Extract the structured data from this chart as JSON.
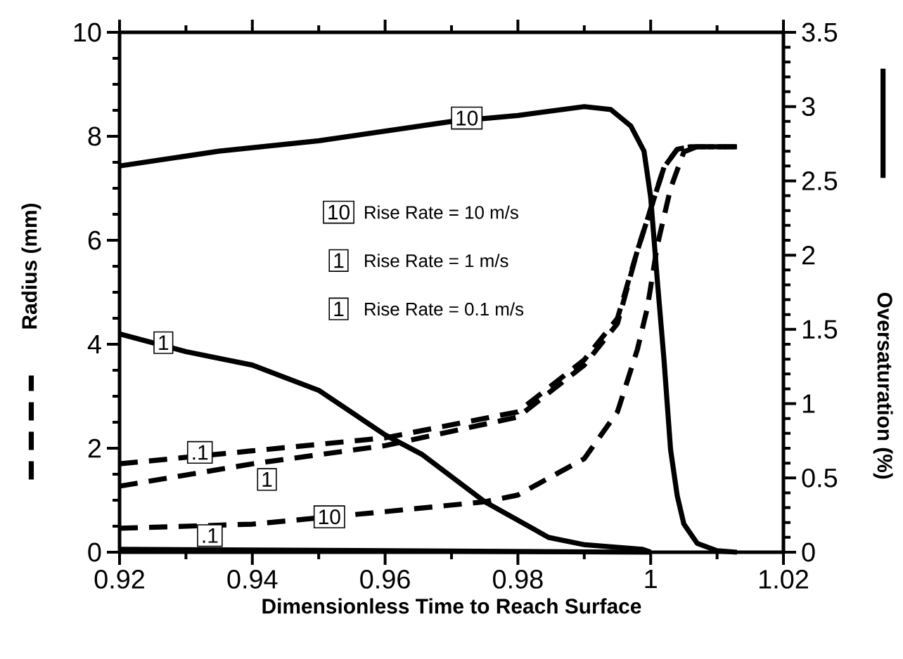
{
  "chart_data": {
    "type": "line",
    "xlabel": "Dimensionless Time to Reach Surface",
    "ylabel": "Radius (mm)",
    "y2label": "Oversaturation (%)",
    "xlim": [
      0.92,
      1.02
    ],
    "xticks": [
      0.92,
      0.94,
      0.96,
      0.98,
      1,
      1.02
    ],
    "ylim": [
      0,
      10
    ],
    "yticks": [
      0,
      2,
      4,
      6,
      8,
      10
    ],
    "y2lim": [
      0,
      3.5
    ],
    "y2ticks": [
      0,
      0.5,
      1,
      1.5,
      2,
      2.5,
      3,
      3.5
    ],
    "series": [
      {
        "color": "#000000",
        "line_style": "dashed",
        "axis": "y",
        "x": [
          0.92,
          0.94,
          0.96,
          0.975,
          0.98,
          0.99,
          0.995,
          0.998,
          0.9995,
          1.001,
          1.003,
          1.005,
          1.007,
          1.013
        ],
        "values": [
          0.46,
          0.54,
          0.78,
          0.97,
          1.1,
          1.8,
          2.7,
          3.9,
          4.7,
          5.9,
          7.0,
          7.7,
          7.8,
          7.8
        ]
      },
      {
        "color": "#000000",
        "line_style": "dashed",
        "axis": "y",
        "x": [
          0.92,
          0.94,
          0.96,
          0.98,
          0.99,
          0.995,
          0.998,
          1,
          1.002,
          1.004,
          1.006,
          1.013
        ],
        "values": [
          1.27,
          1.7,
          2.05,
          2.6,
          3.6,
          4.4,
          5.8,
          6.6,
          7.4,
          7.75,
          7.8,
          7.8
        ]
      },
      {
        "color": "#000000",
        "line_style": "dashed",
        "axis": "y",
        "x": [
          0.92,
          0.94,
          0.96,
          0.98,
          0.99,
          0.995,
          0.998,
          1,
          1.002,
          1.004,
          1.006,
          1.013
        ],
        "values": [
          1.7,
          1.95,
          2.2,
          2.7,
          3.7,
          4.5,
          5.8,
          6.6,
          7.4,
          7.75,
          7.8,
          7.8
        ]
      },
      {
        "color": "#000000",
        "line_style": "solid",
        "axis": "y2",
        "x": [
          0.92,
          0.935,
          0.95,
          0.97,
          0.98,
          0.99,
          0.994,
          0.997,
          0.999,
          1,
          1.001,
          1.002,
          1.003,
          1.004,
          1.005,
          1.007,
          1.01,
          1.013
        ],
        "values": [
          2.6,
          2.7,
          2.77,
          2.9,
          2.94,
          3.0,
          2.98,
          2.87,
          2.7,
          2.39,
          1.83,
          1.3,
          0.69,
          0.38,
          0.19,
          0.06,
          0.01,
          0
        ]
      },
      {
        "color": "#000000",
        "line_style": "solid",
        "axis": "y2",
        "x": [
          0.92,
          0.93,
          0.94,
          0.95,
          0.96,
          0.9655,
          0.975,
          0.9846,
          0.9901,
          0.9987,
          1.0
        ],
        "values": [
          1.47,
          1.35,
          1.26,
          1.09,
          0.79,
          0.66,
          0.34,
          0.1,
          0.05,
          0.02,
          0
        ]
      },
      {
        "color": "#000000",
        "line_style": "solid",
        "axis": "y2",
        "x": [
          0.92,
          0.96,
          1.0
        ],
        "values": [
          0.02,
          0.01,
          0
        ]
      }
    ],
    "annotations": [
      {
        "text": "10",
        "x": 0.9723,
        "y": 8.35
      },
      {
        "text": "1",
        "x": 0.9266,
        "y": 4.03
      },
      {
        "text": ".1",
        "x": 0.9321,
        "y": 1.92
      },
      {
        "text": "1",
        "x": 0.9422,
        "y": 1.4
      },
      {
        "text": "10",
        "x": 0.9516,
        "y": 0.68
      },
      {
        "text": ".1",
        "x": 0.9336,
        "y": 0.32
      },
      "10",
      "Rise Rate = 10 m/s",
      "1",
      "Rise Rate = 1 m/s",
      "1",
      "Rise Rate = 0.1 m/s"
    ]
  }
}
